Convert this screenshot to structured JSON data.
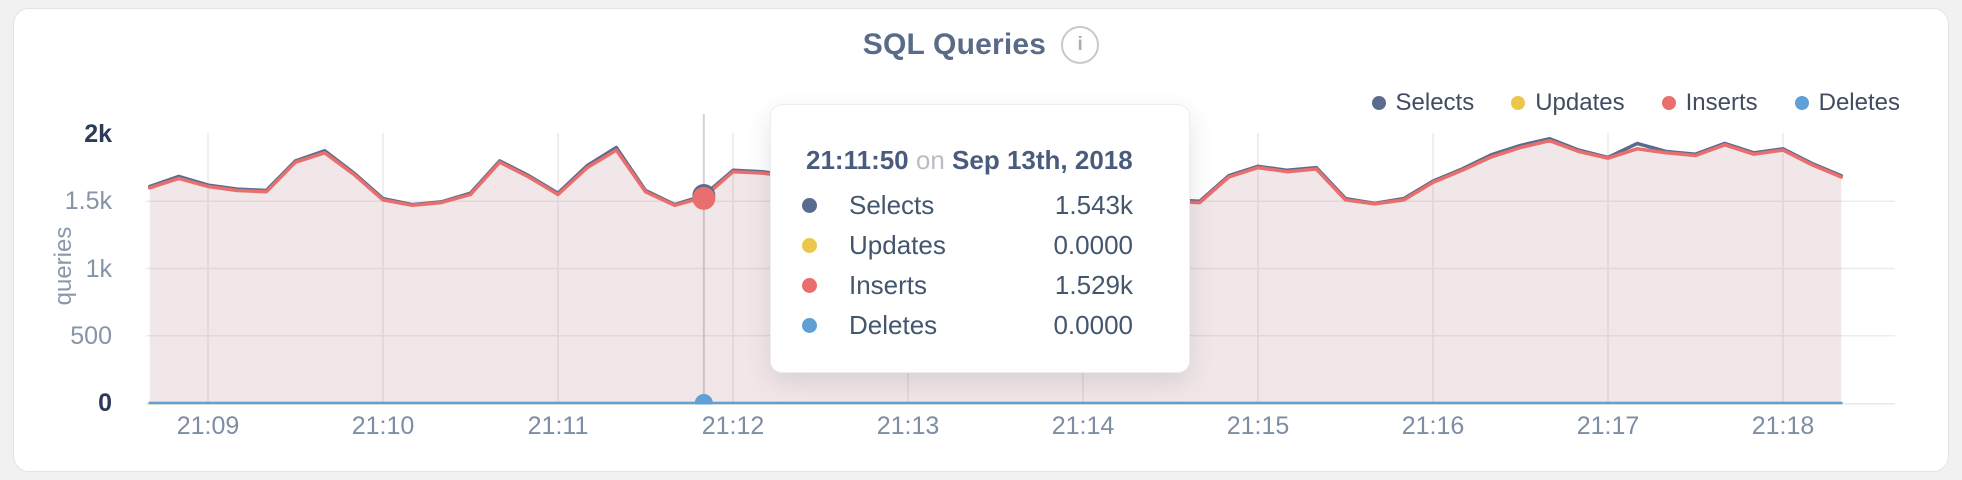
{
  "header": {
    "title": "SQL Queries",
    "info_glyph": "i"
  },
  "legend": {
    "items": [
      {
        "label": "Selects",
        "color": "#5a6c8e"
      },
      {
        "label": "Updates",
        "color": "#ecc74c"
      },
      {
        "label": "Inserts",
        "color": "#e86f6e"
      },
      {
        "label": "Deletes",
        "color": "#5fa0d6"
      }
    ]
  },
  "y_axis": {
    "title": "queries",
    "ticks": [
      {
        "label": "2k",
        "value": 2000,
        "strong": true
      },
      {
        "label": "1.5k",
        "value": 1500,
        "strong": false
      },
      {
        "label": "1k",
        "value": 1000,
        "strong": false
      },
      {
        "label": "500",
        "value": 500,
        "strong": false
      },
      {
        "label": "0",
        "value": 0,
        "strong": true
      }
    ]
  },
  "x_axis": {
    "ticks": [
      "21:09",
      "21:10",
      "21:11",
      "21:12",
      "21:13",
      "21:14",
      "21:15",
      "21:16",
      "21:17",
      "21:18"
    ]
  },
  "tooltip": {
    "time": "21:11:50",
    "connector": "on",
    "date": "Sep 13th, 2018",
    "rows": [
      {
        "label": "Selects",
        "value": "1.543k",
        "color": "#5a6c8e"
      },
      {
        "label": "Updates",
        "value": "0.0000",
        "color": "#ecc74c"
      },
      {
        "label": "Inserts",
        "value": "1.529k",
        "color": "#e86f6e"
      },
      {
        "label": "Deletes",
        "value": "0.0000",
        "color": "#5fa0d6"
      }
    ]
  },
  "chart_data": {
    "type": "area",
    "title": "SQL Queries",
    "ylabel": "queries",
    "ylim": [
      0,
      2000
    ],
    "yticks": [
      0,
      500,
      1000,
      1500,
      2000
    ],
    "grid": true,
    "legend_position": "top-right",
    "x_start": "21:08:40",
    "x_end": "21:18:20",
    "x_step_seconds": 10,
    "x_tick_labels": [
      "21:09",
      "21:10",
      "21:11",
      "21:12",
      "21:13",
      "21:14",
      "21:15",
      "21:16",
      "21:17",
      "21:18"
    ],
    "hover": {
      "time": "21:11:50",
      "Selects": 1543,
      "Updates": 0,
      "Inserts": 1529,
      "Deletes": 0
    },
    "series": [
      {
        "name": "Selects",
        "color": "#5a6c8e",
        "fill": "rgba(90,108,142,0.07)",
        "values": [
          1610,
          1685,
          1620,
          1590,
          1580,
          1800,
          1875,
          1710,
          1520,
          1475,
          1495,
          1560,
          1800,
          1690,
          1560,
          1765,
          1900,
          1580,
          1475,
          1543,
          1730,
          1720,
          1690,
          1640,
          1600,
          1620,
          1570,
          1590,
          1630,
          1610,
          1570,
          1590,
          1620,
          1580,
          1540,
          1510,
          1500,
          1690,
          1760,
          1730,
          1750,
          1520,
          1485,
          1520,
          1650,
          1740,
          1845,
          1915,
          1965,
          1880,
          1825,
          1930,
          1870,
          1850,
          1930,
          1860,
          1890,
          1780,
          1690
        ]
      },
      {
        "name": "Updates",
        "color": "#ecc74c",
        "constant": 0
      },
      {
        "name": "Inserts",
        "color": "#e86f6e",
        "fill": "rgba(231,111,112,0.10)",
        "values": [
          1600,
          1670,
          1610,
          1580,
          1570,
          1790,
          1860,
          1700,
          1510,
          1470,
          1490,
          1550,
          1790,
          1680,
          1550,
          1750,
          1880,
          1570,
          1470,
          1529,
          1720,
          1710,
          1680,
          1630,
          1590,
          1610,
          1560,
          1580,
          1620,
          1600,
          1560,
          1580,
          1610,
          1570,
          1530,
          1500,
          1490,
          1680,
          1750,
          1720,
          1740,
          1510,
          1480,
          1510,
          1640,
          1730,
          1830,
          1900,
          1950,
          1870,
          1820,
          1890,
          1860,
          1840,
          1920,
          1850,
          1880,
          1770,
          1680
        ]
      },
      {
        "name": "Deletes",
        "color": "#5fa0d6",
        "constant": 0
      }
    ]
  }
}
